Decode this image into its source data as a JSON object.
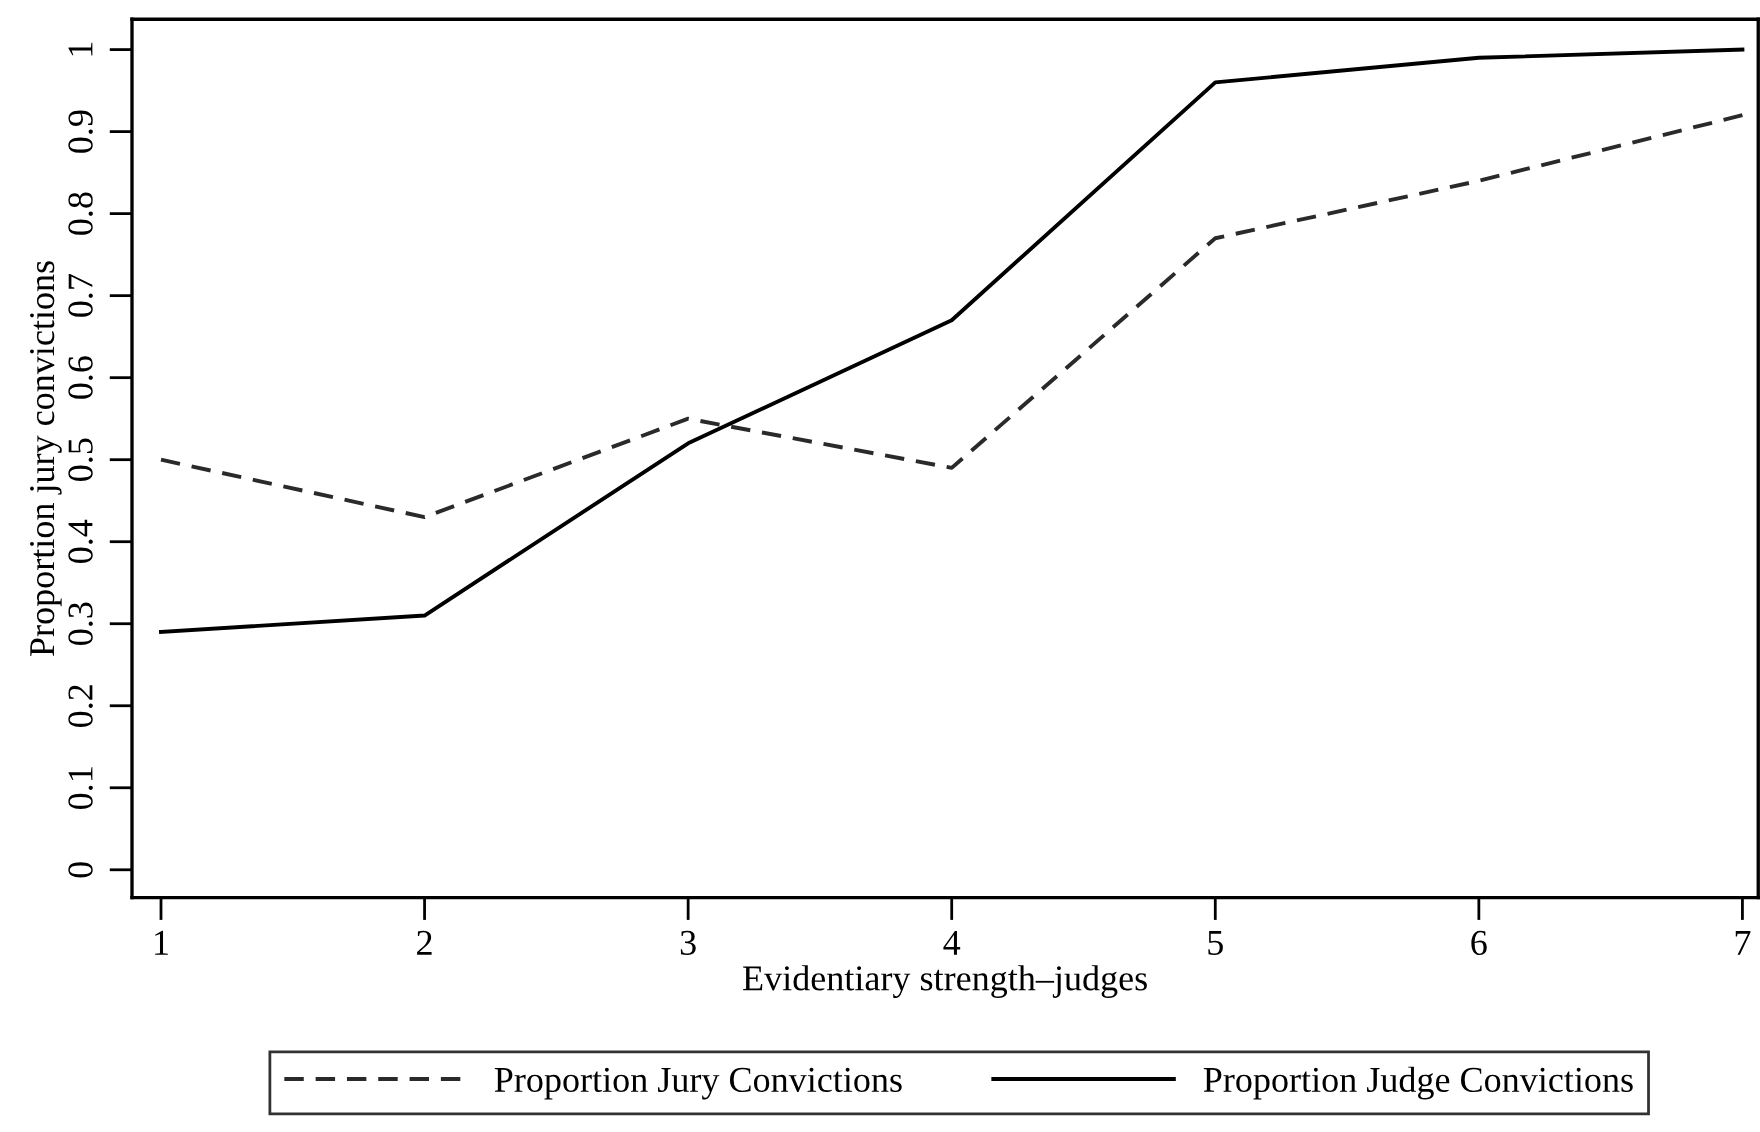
{
  "chart_data": {
    "type": "line",
    "xlabel": "Evidentiary strength–judges",
    "ylabel": "Proportion jury convictions",
    "x": [
      1,
      2,
      3,
      4,
      5,
      6,
      7
    ],
    "series": [
      {
        "name": "Proportion Jury Convictions",
        "color": "#2a2a2a",
        "line_style": "dashed",
        "values": [
          0.5,
          0.43,
          0.55,
          0.49,
          0.77,
          0.84,
          0.92
        ]
      },
      {
        "name": "Proportion Judge Convictions",
        "color": "#000000",
        "line_style": "solid",
        "values": [
          0.29,
          0.31,
          0.52,
          0.67,
          0.96,
          0.99,
          1.0
        ]
      }
    ],
    "xlim": [
      0.89,
      7.06
    ],
    "ylim": [
      -0.034,
      1.037
    ],
    "xticks": [
      1,
      2,
      3,
      4,
      5,
      6,
      7
    ],
    "yticks": [
      0,
      0.1,
      0.2,
      0.3,
      0.4,
      0.5,
      0.6,
      0.7,
      0.8,
      0.9,
      1
    ],
    "grid": false,
    "legend": "bottom",
    "marker": "none"
  }
}
